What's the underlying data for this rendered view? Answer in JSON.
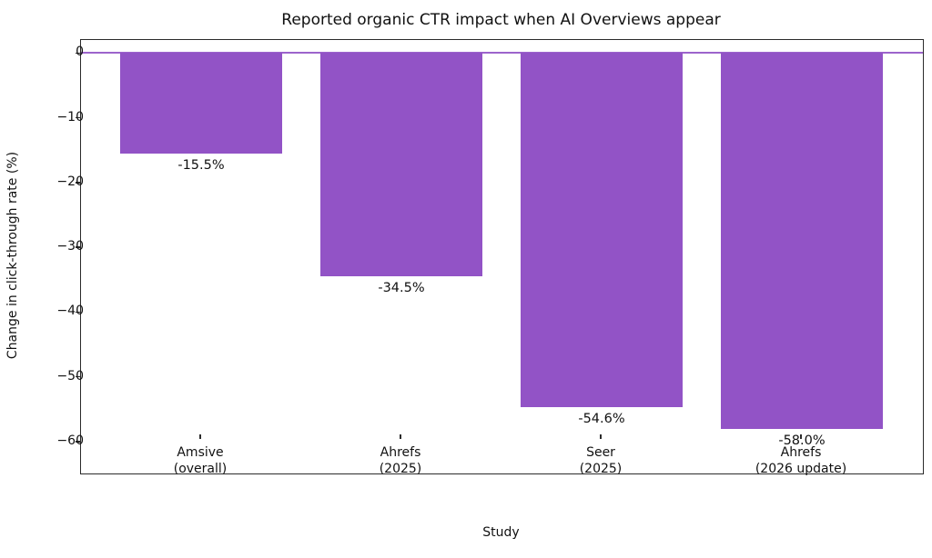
{
  "chart_data": {
    "type": "bar",
    "title": "Reported organic CTR impact when AI Overviews appear",
    "xlabel": "Study",
    "ylabel": "Change in click-through rate (%)",
    "categories": [
      "Amsive\n(overall)",
      "Ahrefs\n(2025)",
      "Seer\n(2025)",
      "Ahrefs\n(2026 update)"
    ],
    "values": [
      -15.5,
      -34.5,
      -54.6,
      -58.0
    ],
    "bar_labels": [
      "-15.5%",
      "-34.5%",
      "-54.6%",
      "-58.0%"
    ],
    "yticks": [
      0,
      -10,
      -20,
      -30,
      -40,
      -50,
      -60
    ],
    "ytick_labels": [
      "0",
      "−10",
      "−20",
      "−30",
      "−40",
      "−50",
      "−60"
    ],
    "ylim": [
      -64.9,
      2.0
    ],
    "grid": false,
    "legend": null,
    "bar_color": "#9253c6",
    "zero_line_color": "#9253c6",
    "axis_color": "#2b2b2b",
    "text_color": "#111111"
  }
}
